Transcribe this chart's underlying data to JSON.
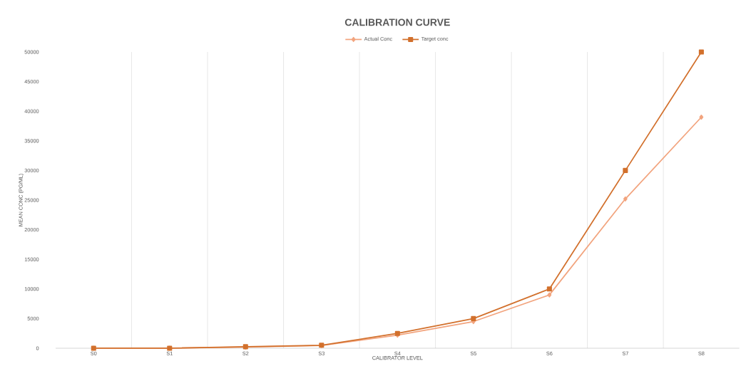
{
  "chart_data": {
    "type": "line",
    "title": "CALIBRATION  CURVE",
    "xlabel": "CALIBRATOR LEVEL",
    "ylabel": "MEAN CONC (PG/ML)",
    "categories": [
      "S0",
      "S1",
      "S2",
      "S3",
      "S4",
      "S5",
      "S6",
      "S7",
      "S8"
    ],
    "series": [
      {
        "name": "Actual Conc",
        "color": "#f2a47e",
        "marker": "diamond",
        "values": [
          0,
          0,
          200,
          450,
          2200,
          4500,
          9000,
          25200,
          39000
        ]
      },
      {
        "name": "Target conc",
        "color": "#d2702c",
        "marker": "square",
        "values": [
          0,
          0,
          250,
          500,
          2500,
          5000,
          10000,
          30000,
          50000
        ]
      }
    ],
    "ylim": [
      0,
      50000
    ],
    "yticks": [
      0,
      5000,
      10000,
      15000,
      20000,
      25000,
      30000,
      35000,
      40000,
      45000,
      50000
    ],
    "grid": "x",
    "legend": "top"
  }
}
